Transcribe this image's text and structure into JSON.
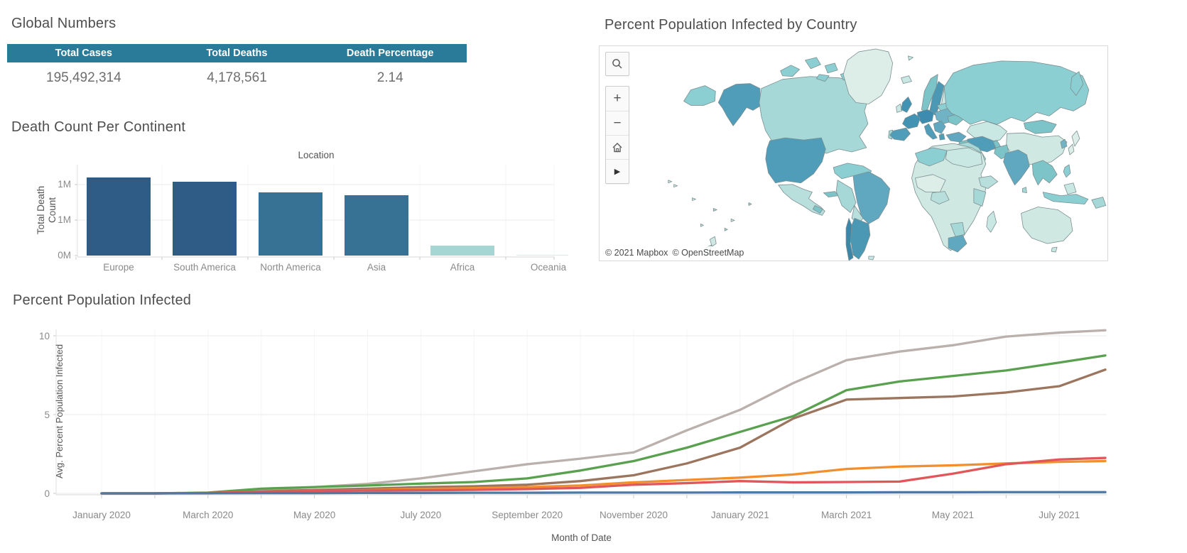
{
  "sections": {
    "global_numbers": {
      "title": "Global Numbers"
    },
    "continent_deaths": {
      "title": "Death Count Per Continent"
    },
    "map": {
      "title": "Percent Population Infected by Country",
      "attribution_mapbox": "© 2021 Mapbox",
      "attribution_osm": "© OpenStreetMap",
      "controls": {
        "zoom_in": "+",
        "zoom_out": "−",
        "expand": "▶"
      }
    },
    "line": {
      "title": "Percent Population Infected"
    }
  },
  "colors": {
    "table_header_bg": "#2a7a99",
    "title_text": "#4e4e4e",
    "tick_text": "#8a8a8a",
    "gridline": "#ebebeb"
  },
  "chart_data": [
    {
      "id": "global-numbers-table",
      "type": "table",
      "title": "Global Numbers",
      "columns": [
        "Total Cases",
        "Total Deaths",
        "Death Percentage"
      ],
      "rows": [
        [
          "195,492,314",
          "4,178,561",
          "2.14"
        ]
      ]
    },
    {
      "id": "death-count-bar",
      "type": "bar",
      "title": "Death Count Per Continent",
      "xlabel": "Location",
      "ylabel": [
        "Total Death",
        "Count"
      ],
      "categories": [
        "Europe",
        "South America",
        "North America",
        "Asia",
        "Africa",
        "Oceania"
      ],
      "values_millions": [
        1.1,
        1.04,
        0.89,
        0.85,
        0.14,
        0.002
      ],
      "bar_colors": [
        "#2e5c87",
        "#2e5c87",
        "#377294",
        "#377294",
        "#a5d6d4",
        "#d8ece9"
      ],
      "ytick_labels": [
        "0M",
        "1M",
        "1M"
      ],
      "ytick_values": [
        0,
        0.5,
        1.0
      ],
      "ylim": [
        0,
        1.3
      ],
      "grid": true
    },
    {
      "id": "infection-map",
      "type": "choropleth",
      "title": "Percent Population Infected by Country",
      "attribution": "© 2021 Mapbox © OpenStreetMap",
      "controls": [
        "search",
        "zoom-in",
        "zoom-out",
        "home",
        "expand"
      ],
      "legend_visible": false,
      "palette": {
        "s1": "#ddeee8",
        "s2": "#cfe9e2",
        "s3": "#c9e7e3",
        "s4": "#b8dfdc",
        "s5": "#a5d8d6",
        "s6": "#8ccfd3",
        "s7": "#7cc4c8",
        "s8": "#6fb3c4",
        "s9": "#5fa8bf",
        "s10": "#4f9db9",
        "s11": "#4a98b4",
        "s12": "#4292b4",
        "s13": "#3d8cb0",
        "s14": "#3c86a8"
      }
    },
    {
      "id": "percent-infected-line",
      "type": "line",
      "title": "Percent Population Infected",
      "xlabel": "Month of Date",
      "ylabel": "Avg. Percent Population Infected",
      "ylim": [
        0,
        10.5
      ],
      "yticks": [
        0,
        5,
        10
      ],
      "grid": true,
      "legend_position": "none",
      "x_monthly": [
        "2020-01",
        "2020-02",
        "2020-03",
        "2020-04",
        "2020-05",
        "2020-06",
        "2020-07",
        "2020-08",
        "2020-09",
        "2020-10",
        "2020-11",
        "2020-12",
        "2021-01",
        "2021-02",
        "2021-03",
        "2021-04",
        "2021-05",
        "2021-06",
        "2021-07",
        "2021-07-end"
      ],
      "x_tick_labels": [
        "January 2020",
        "March 2020",
        "May 2020",
        "July 2020",
        "September 2020",
        "November 2020",
        "January 2021",
        "March 2021",
        "May 2021",
        "July 2021"
      ],
      "series": [
        {
          "name": "series-gray",
          "color": "#bab0ac",
          "values": [
            0,
            0,
            0.02,
            0.2,
            0.4,
            0.6,
            0.95,
            1.4,
            1.85,
            2.2,
            2.6,
            4.0,
            5.3,
            7.0,
            8.45,
            9.0,
            9.4,
            9.95,
            10.2,
            10.35
          ]
        },
        {
          "name": "series-green",
          "color": "#59a14f",
          "values": [
            0,
            0,
            0.05,
            0.3,
            0.4,
            0.5,
            0.62,
            0.72,
            0.95,
            1.45,
            2.05,
            2.9,
            3.9,
            4.9,
            6.55,
            7.1,
            7.45,
            7.8,
            8.3,
            8.75
          ]
        },
        {
          "name": "series-brown",
          "color": "#9c755f",
          "values": [
            0,
            0,
            0.02,
            0.12,
            0.22,
            0.3,
            0.4,
            0.45,
            0.55,
            0.78,
            1.15,
            1.9,
            2.9,
            4.75,
            5.95,
            6.05,
            6.15,
            6.4,
            6.8,
            7.85
          ]
        },
        {
          "name": "series-orange",
          "color": "#f28e2b",
          "values": [
            0,
            0,
            0.02,
            0.1,
            0.15,
            0.2,
            0.28,
            0.33,
            0.4,
            0.5,
            0.7,
            0.85,
            1.0,
            1.2,
            1.55,
            1.7,
            1.78,
            1.9,
            2.0,
            2.05
          ]
        },
        {
          "name": "series-red",
          "color": "#e15759",
          "values": [
            0,
            0,
            0.02,
            0.1,
            0.15,
            0.18,
            0.2,
            0.22,
            0.27,
            0.35,
            0.55,
            0.65,
            0.78,
            0.7,
            0.72,
            0.75,
            1.25,
            1.85,
            2.15,
            2.25
          ]
        },
        {
          "name": "series-blue",
          "color": "#4e79a7",
          "values": [
            0,
            0,
            0.01,
            0.02,
            0.02,
            0.03,
            0.03,
            0.04,
            0.04,
            0.05,
            0.05,
            0.05,
            0.06,
            0.06,
            0.06,
            0.07,
            0.07,
            0.08,
            0.08,
            0.08
          ]
        }
      ]
    }
  ]
}
